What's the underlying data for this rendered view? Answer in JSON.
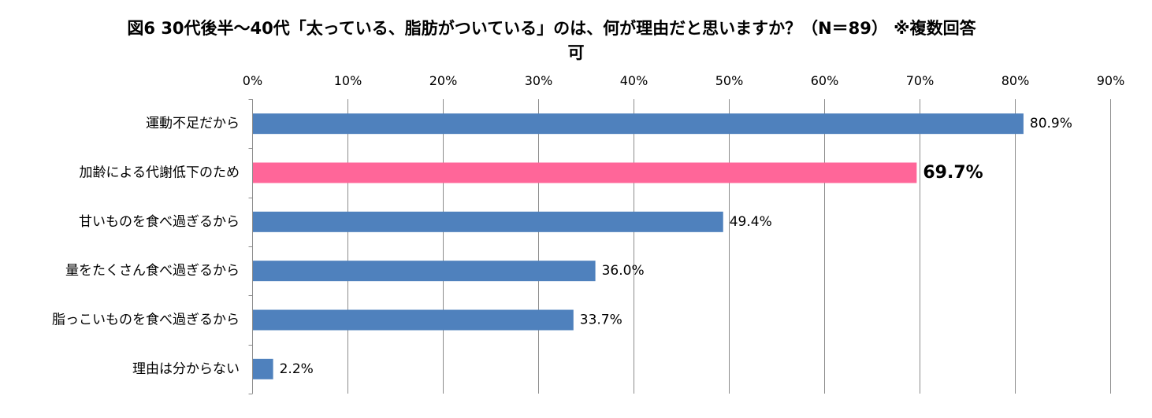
{
  "chart_data": {
    "type": "bar",
    "orientation": "horizontal",
    "title": "図6 30代後半～40代「太っている、脂肪がついている」のは、何が理由だと思いますか？（N＝89） ※複数回答可",
    "title_lines": [
      "図6 30代後半～40代「太っている、脂肪がついている」のは、何が理由だと思いますか？（N＝89） ※複数回答",
      "可"
    ],
    "categories": [
      "運動不足だから",
      "加齢による代謝低下のため",
      "甘いものを食べ過ぎるから",
      "量をたくさん食べ過ぎるから",
      "脂っこいものを食べ過ぎるから",
      "理由は分からない"
    ],
    "values": [
      80.9,
      69.7,
      49.4,
      36.0,
      33.7,
      2.2
    ],
    "value_labels": [
      "80.9%",
      "69.7%",
      "49.4%",
      "36.0%",
      "33.7%",
      "2.2%"
    ],
    "highlight_index": 1,
    "bar_color": "#4F81BD",
    "highlight_color": "#FF6699",
    "xlim": [
      0,
      90
    ],
    "xticks": [
      "0%",
      "10%",
      "20%",
      "30%",
      "40%",
      "50%",
      "60%",
      "70%",
      "80%",
      "90%"
    ],
    "xaxis_position": "top",
    "grid": true,
    "legend": "none",
    "xlabel": "",
    "ylabel": ""
  }
}
